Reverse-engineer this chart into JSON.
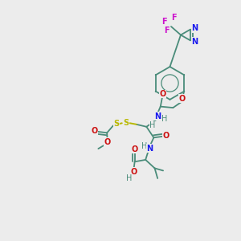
{
  "bg_color": "#ececec",
  "bond_color": "#4a8c7a",
  "atom_colors": {
    "N": "#1a1aee",
    "O": "#cc1111",
    "S": "#b8b800",
    "F": "#cc11cc",
    "H": "#4a8c7a"
  },
  "figsize": [
    3.0,
    3.0
  ],
  "dpi": 100,
  "lw": 1.3,
  "fs": 7.0
}
